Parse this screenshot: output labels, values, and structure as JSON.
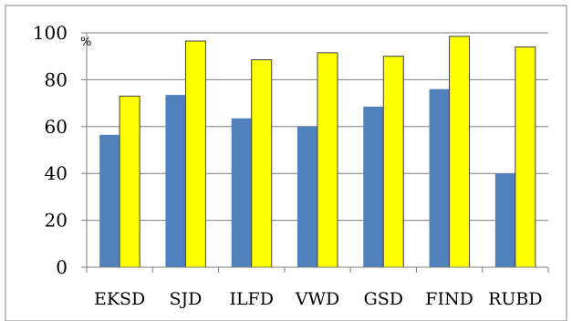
{
  "chart_data": {
    "type": "bar",
    "categories": [
      "EKSD",
      "SJD",
      "ILFD",
      "VWD",
      "GSD",
      "FIND",
      "RUBD"
    ],
    "series": [
      {
        "values": [
          56.5,
          73.5,
          63.5,
          60,
          68.5,
          76,
          40
        ],
        "color": "#4f81bd"
      },
      {
        "values": [
          73,
          96.5,
          88.5,
          91.5,
          90,
          98.5,
          94
        ],
        "color": "#ffff00"
      }
    ],
    "ylim": [
      0,
      100
    ],
    "yticks": [
      0,
      20,
      40,
      60,
      80,
      100
    ],
    "unit": "%",
    "grid": true,
    "legend": "none"
  }
}
